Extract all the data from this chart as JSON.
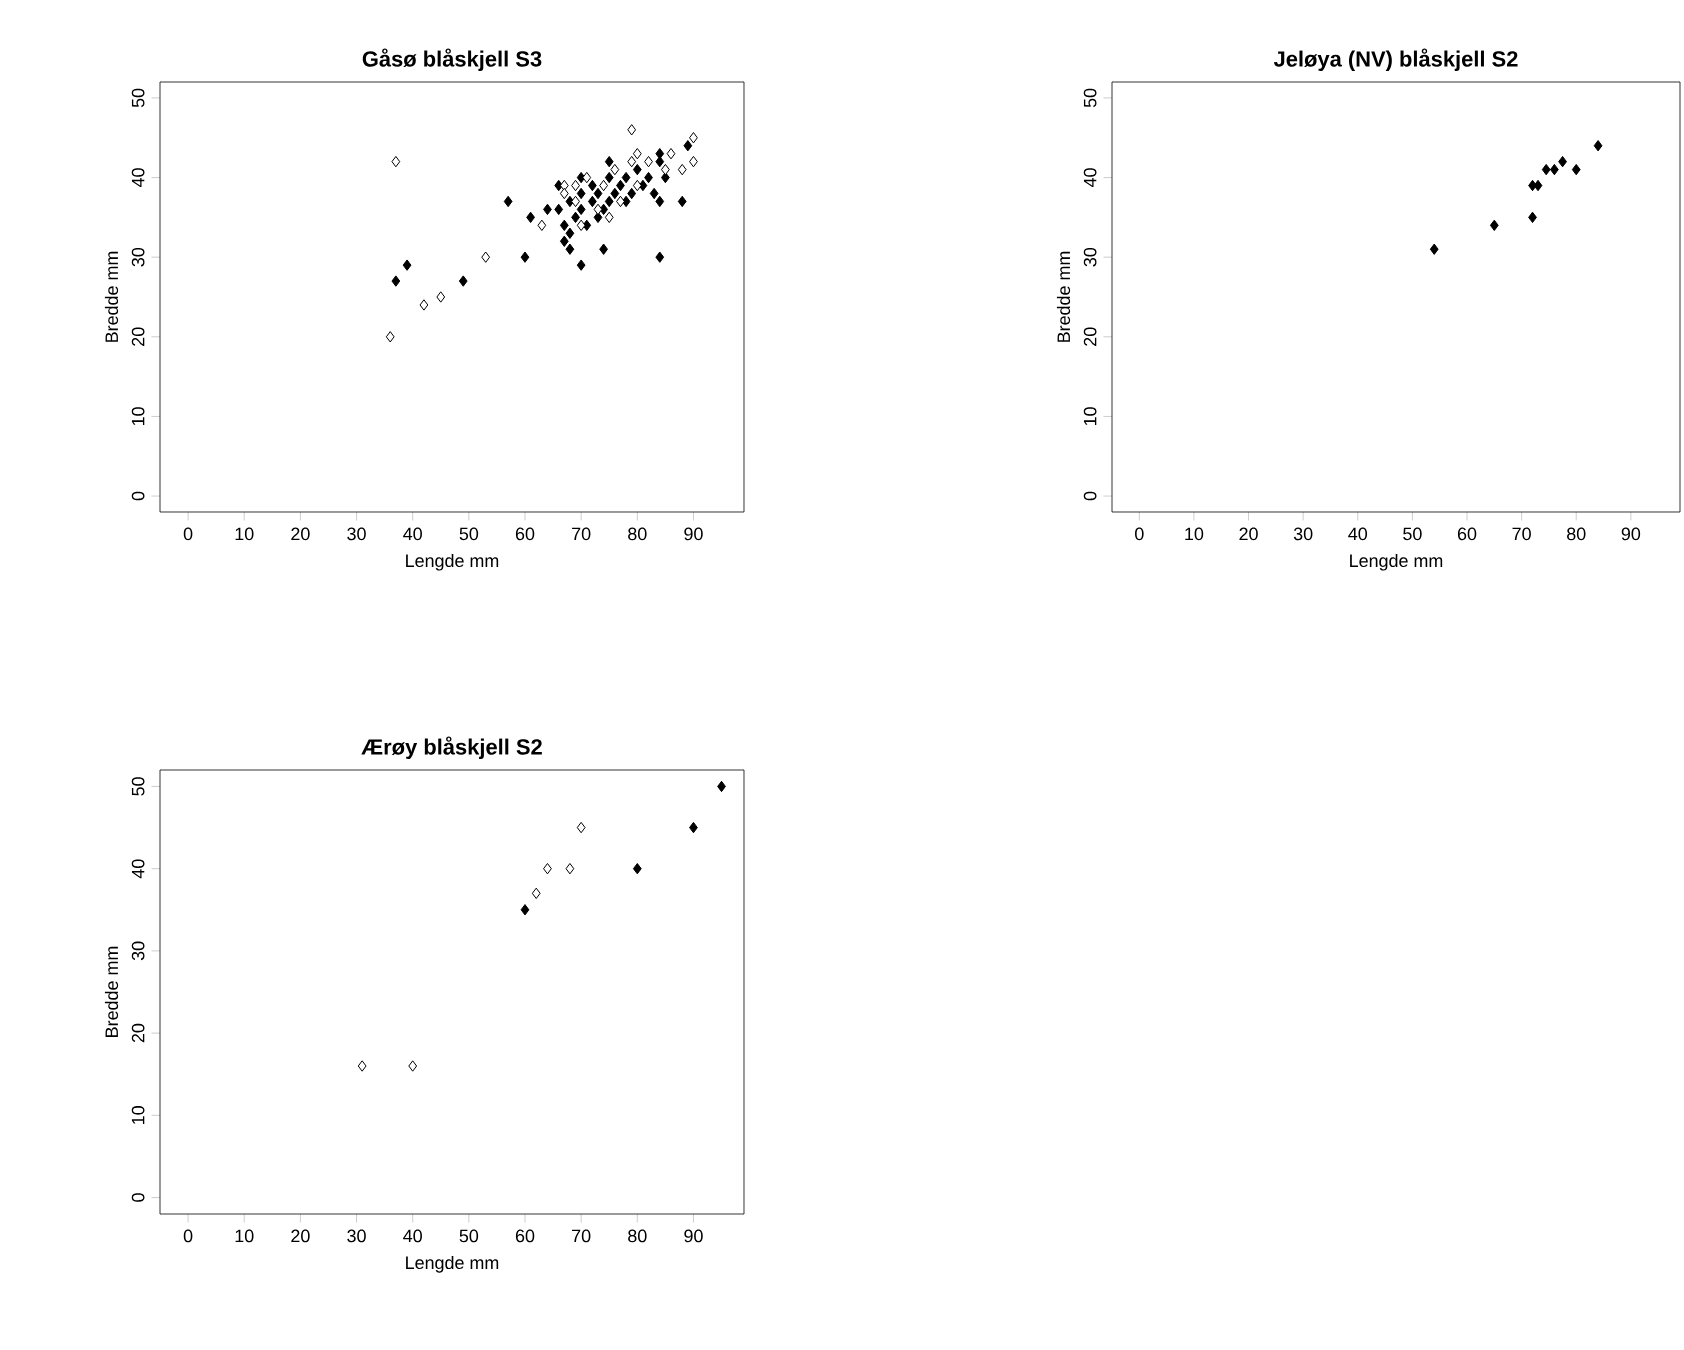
{
  "chart_data": [
    {
      "type": "scatter",
      "title": "Gåsø blåskjell S3",
      "xlabel": "Lengde mm",
      "ylabel": "Bredde mm",
      "xlim": [
        -5,
        99
      ],
      "ylim": [
        -2,
        52
      ],
      "xticks": [
        0,
        10,
        20,
        30,
        40,
        50,
        60,
        70,
        80,
        90
      ],
      "yticks": [
        0,
        10,
        20,
        30,
        40,
        50
      ],
      "marker": "diamond",
      "grid": false,
      "series": [
        {
          "color": "#000000",
          "x": [
            37,
            39,
            49,
            57,
            60,
            61,
            64,
            70,
            74,
            84,
            88,
            89,
            84,
            75,
            84,
            66,
            67,
            68,
            68,
            69,
            70,
            70,
            71,
            72,
            72,
            73,
            73,
            74,
            75,
            75,
            76,
            77,
            78,
            78,
            79,
            80,
            81,
            82,
            83,
            84,
            85,
            68,
            67,
            70,
            66
          ],
          "values": [
            27,
            29,
            27,
            37,
            30,
            35,
            36,
            29,
            31,
            30,
            37,
            44,
            43,
            42,
            37,
            36,
            34,
            33,
            37,
            35,
            36,
            38,
            34,
            37,
            39,
            35,
            38,
            36,
            37,
            40,
            38,
            39,
            37,
            40,
            38,
            41,
            39,
            40,
            38,
            42,
            40,
            31,
            32,
            40,
            39
          ]
        },
        {
          "color": "#ffffff",
          "x": [
            37,
            36,
            42,
            45,
            53,
            79,
            90,
            90,
            88,
            67,
            63,
            69,
            80,
            67,
            69,
            71,
            73,
            74,
            76,
            77,
            79,
            80,
            82,
            85,
            86,
            70,
            75
          ],
          "values": [
            42,
            20,
            24,
            25,
            30,
            46,
            45,
            42,
            41,
            39,
            34,
            39,
            43,
            38,
            37,
            40,
            36,
            39,
            41,
            37,
            42,
            39,
            42,
            41,
            43,
            34,
            35
          ]
        }
      ]
    },
    {
      "type": "scatter",
      "title": "Jeløya (NV) blåskjell S2",
      "xlabel": "Lengde mm",
      "ylabel": "Bredde mm",
      "xlim": [
        -5,
        99
      ],
      "ylim": [
        -2,
        52
      ],
      "xticks": [
        0,
        10,
        20,
        30,
        40,
        50,
        60,
        70,
        80,
        90
      ],
      "yticks": [
        0,
        10,
        20,
        30,
        40,
        50
      ],
      "marker": "diamond",
      "grid": false,
      "series": [
        {
          "color": "#000000",
          "x": [
            54,
            65,
            72,
            72,
            73,
            74.5,
            76,
            77.5,
            80,
            84
          ],
          "values": [
            31,
            34,
            35,
            39,
            39,
            41,
            41,
            42,
            41,
            44
          ]
        }
      ]
    },
    {
      "type": "scatter",
      "title": "Ærøy blåskjell S2",
      "xlabel": "Lengde mm",
      "ylabel": "Bredde mm",
      "xlim": [
        -5,
        99
      ],
      "ylim": [
        -2,
        52
      ],
      "xticks": [
        0,
        10,
        20,
        30,
        40,
        50,
        60,
        70,
        80,
        90
      ],
      "yticks": [
        0,
        10,
        20,
        30,
        40,
        50
      ],
      "marker": "diamond",
      "grid": false,
      "series": [
        {
          "color": "#000000",
          "x": [
            60,
            80,
            90,
            95
          ],
          "values": [
            35,
            40,
            45,
            50
          ]
        },
        {
          "color": "#ffffff",
          "x": [
            31,
            40,
            62,
            64,
            68,
            70
          ],
          "values": [
            16,
            16,
            37,
            40,
            40,
            45
          ]
        }
      ]
    }
  ]
}
